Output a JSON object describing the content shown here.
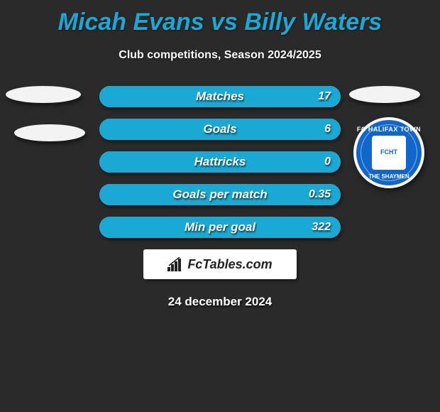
{
  "title": "Micah Evans vs Billy Waters",
  "subtitle": "Club competitions, Season 2024/2025",
  "colors": {
    "background": "#2a2a2a",
    "accent": "#1aa8d4",
    "bar_bg": "#b8b8b8",
    "ellipse": "#f3f3f3",
    "badge_blue": "#1166cc",
    "text": "#ffffff"
  },
  "club_badge": {
    "top_text": "FC HALIFAX TOWN",
    "bottom_text": "THE SHAYMEN",
    "inner": "FCHT"
  },
  "stats": [
    {
      "label": "Matches",
      "right_value": "17",
      "right_fill_pct": 100
    },
    {
      "label": "Goals",
      "right_value": "6",
      "right_fill_pct": 100
    },
    {
      "label": "Hattricks",
      "right_value": "0",
      "right_fill_pct": 100
    },
    {
      "label": "Goals per match",
      "right_value": "0.35",
      "right_fill_pct": 100
    },
    {
      "label": "Min per goal",
      "right_value": "322",
      "right_fill_pct": 100
    }
  ],
  "brand": {
    "text": "FcTables.com"
  },
  "date": "24 december 2024"
}
